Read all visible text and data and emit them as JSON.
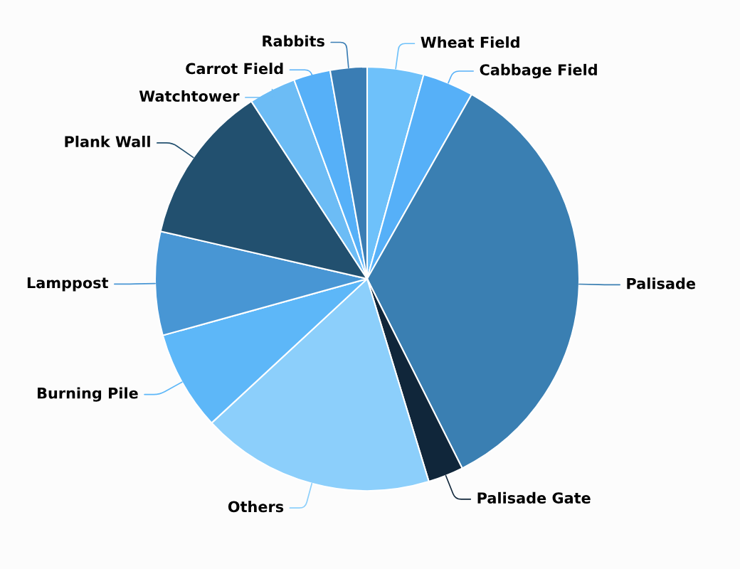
{
  "chart_data": {
    "type": "pie",
    "categories": [
      "Wheat Field",
      "Cabbage Field",
      "Palisade",
      "Palisade Gate",
      "Others",
      "Burning Pile",
      "Lamppost",
      "Plank Wall",
      "Watchtower",
      "Carrot Field",
      "Rabbits"
    ],
    "values": [
      4.3,
      3.9,
      34.4,
      2.7,
      17.8,
      7.6,
      7.9,
      12.2,
      3.6,
      2.8,
      2.8
    ],
    "colors": [
      "#6ec1fa",
      "#56b0f8",
      "#3a7fb2",
      "#10263a",
      "#8ccffb",
      "#5db7f8",
      "#4896d4",
      "#22506f",
      "#6cbcf5",
      "#56b0f8",
      "#3a7db4"
    ],
    "legend": false
  }
}
